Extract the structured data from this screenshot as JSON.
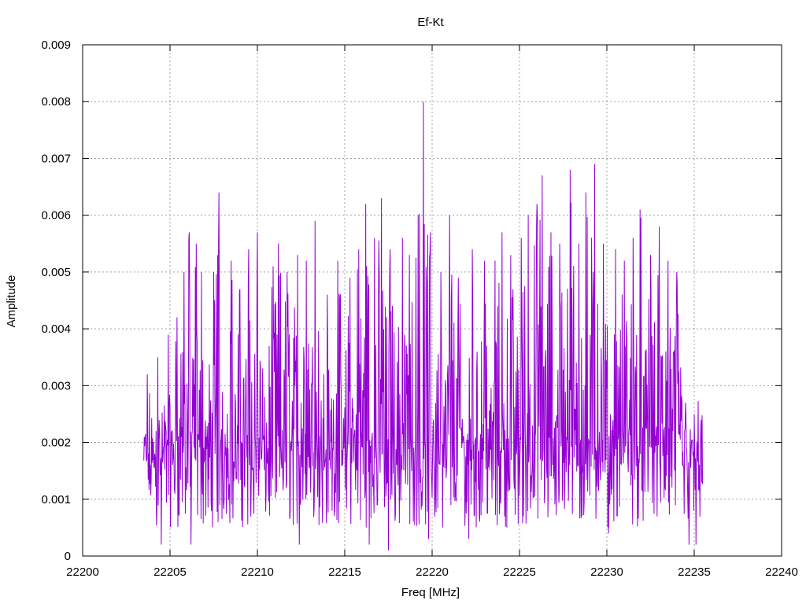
{
  "chart_data": {
    "type": "line",
    "title": "Ef-Kt",
    "xlabel": "Freq [MHz]",
    "ylabel": "Amplitude",
    "xlim": [
      22200,
      22240
    ],
    "ylim": [
      0,
      0.009
    ],
    "xticks": [
      22200,
      22205,
      22210,
      22215,
      22220,
      22225,
      22230,
      22235,
      22240
    ],
    "yticks": [
      "0",
      "0.001",
      "0.002",
      "0.003",
      "0.004",
      "0.005",
      "0.006",
      "0.007",
      "0.008",
      "0.009"
    ],
    "grid": true,
    "legend": "none",
    "series": [
      {
        "color": "#9400d3",
        "x_start": 22203.5,
        "x_end": 22235.5,
        "x_step": 0.025,
        "peaks": [
          {
            "x": 22203.7,
            "y": 0.0032
          },
          {
            "x": 22204.3,
            "y": 0.0035
          },
          {
            "x": 22204.9,
            "y": 0.0039
          },
          {
            "x": 22205.4,
            "y": 0.0042
          },
          {
            "x": 22205.8,
            "y": 0.005
          },
          {
            "x": 22206.1,
            "y": 0.0057
          },
          {
            "x": 22206.5,
            "y": 0.0055
          },
          {
            "x": 22206.8,
            "y": 0.005
          },
          {
            "x": 22207.5,
            "y": 0.005
          },
          {
            "x": 22207.8,
            "y": 0.0064
          },
          {
            "x": 22208.5,
            "y": 0.0052
          },
          {
            "x": 22209.0,
            "y": 0.0047
          },
          {
            "x": 22209.5,
            "y": 0.0054
          },
          {
            "x": 22210.0,
            "y": 0.0057
          },
          {
            "x": 22210.9,
            "y": 0.0051
          },
          {
            "x": 22211.2,
            "y": 0.0055
          },
          {
            "x": 22211.7,
            "y": 0.005
          },
          {
            "x": 22212.3,
            "y": 0.0053
          },
          {
            "x": 22212.8,
            "y": 0.0052
          },
          {
            "x": 22213.3,
            "y": 0.0059
          },
          {
            "x": 22214.0,
            "y": 0.0046
          },
          {
            "x": 22214.6,
            "y": 0.0052
          },
          {
            "x": 22215.3,
            "y": 0.0049
          },
          {
            "x": 22215.8,
            "y": 0.0054
          },
          {
            "x": 22216.2,
            "y": 0.0062
          },
          {
            "x": 22216.7,
            "y": 0.0056
          },
          {
            "x": 22217.1,
            "y": 0.0063
          },
          {
            "x": 22217.6,
            "y": 0.0054
          },
          {
            "x": 22218.3,
            "y": 0.0056
          },
          {
            "x": 22218.7,
            "y": 0.0053
          },
          {
            "x": 22219.2,
            "y": 0.006
          },
          {
            "x": 22219.5,
            "y": 0.008
          },
          {
            "x": 22219.9,
            "y": 0.0057
          },
          {
            "x": 22220.5,
            "y": 0.005
          },
          {
            "x": 22221.0,
            "y": 0.006
          },
          {
            "x": 22221.5,
            "y": 0.0049
          },
          {
            "x": 22222.3,
            "y": 0.0054
          },
          {
            "x": 22223.0,
            "y": 0.0052
          },
          {
            "x": 22223.6,
            "y": 0.0052
          },
          {
            "x": 22224.0,
            "y": 0.0057
          },
          {
            "x": 22224.5,
            "y": 0.0053
          },
          {
            "x": 22225.1,
            "y": 0.0056
          },
          {
            "x": 22225.5,
            "y": 0.006
          },
          {
            "x": 22226.0,
            "y": 0.0062
          },
          {
            "x": 22226.3,
            "y": 0.0067
          },
          {
            "x": 22226.8,
            "y": 0.0057
          },
          {
            "x": 22227.3,
            "y": 0.0055
          },
          {
            "x": 22227.9,
            "y": 0.0068
          },
          {
            "x": 22228.4,
            "y": 0.0055
          },
          {
            "x": 22228.8,
            "y": 0.0064
          },
          {
            "x": 22229.3,
            "y": 0.0069
          },
          {
            "x": 22229.8,
            "y": 0.0055
          },
          {
            "x": 22230.5,
            "y": 0.0054
          },
          {
            "x": 22231.0,
            "y": 0.0052
          },
          {
            "x": 22231.5,
            "y": 0.0056
          },
          {
            "x": 22231.9,
            "y": 0.0061
          },
          {
            "x": 22232.5,
            "y": 0.0053
          },
          {
            "x": 22233.0,
            "y": 0.0058
          },
          {
            "x": 22233.5,
            "y": 0.0052
          },
          {
            "x": 22234.0,
            "y": 0.005
          },
          {
            "x": 22234.5,
            "y": 0.0027
          },
          {
            "x": 22235.0,
            "y": 0.0025
          },
          {
            "x": 22235.4,
            "y": 0.0024
          }
        ],
        "dips": [
          {
            "x": 22204.5,
            "y": 0.0002
          },
          {
            "x": 22206.2,
            "y": 0.0002
          },
          {
            "x": 22212.4,
            "y": 0.0002
          },
          {
            "x": 22216.4,
            "y": 0.0002
          },
          {
            "x": 22217.5,
            "y": 0.0001
          },
          {
            "x": 22219.8,
            "y": 0.0003
          },
          {
            "x": 22222.1,
            "y": 0.0003
          },
          {
            "x": 22230.1,
            "y": 0.0004
          },
          {
            "x": 22234.7,
            "y": 0.0002
          },
          {
            "x": 22235.1,
            "y": 0.0002
          }
        ]
      }
    ]
  }
}
